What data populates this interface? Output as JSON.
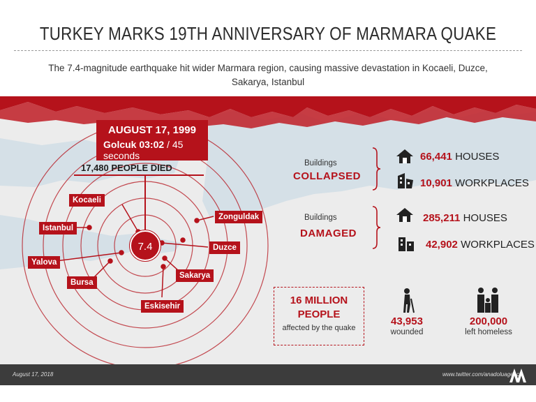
{
  "header": {
    "title": "TURKEY MARKS 19TH ANNIVERSARY OF MARMARA QUAKE",
    "subtitle": "The 7.4-magnitude earthquake hit wider Marmara region, causing massive devastation in Kocaeli, Duzce, Sakarya, Istanbul"
  },
  "event": {
    "date": "AUGUST 17, 1999",
    "place_time": "Golcuk  03:02",
    "duration": "/ 45 seconds",
    "died": "17,480 PEOPLE DIED",
    "magnitude": "7.4"
  },
  "cities": [
    "Kocaeli",
    "Istanbul",
    "Yalova",
    "Bursa",
    "Eskisehir",
    "Sakarya",
    "Duzce",
    "Zonguldak"
  ],
  "collapsed": {
    "label": "Buildings",
    "key": "COLLAPSED",
    "houses_num": "66,441",
    "houses_label": "HOUSES",
    "work_num": "10,901",
    "work_label": "WORKPLACES"
  },
  "damaged": {
    "label": "Buildings",
    "key": "DAMAGED",
    "houses_num": "285,211",
    "houses_label": "HOUSES",
    "work_num": "42,902",
    "work_label": "WORKPLACES"
  },
  "affected": {
    "line1": "16 MILLION",
    "line2": "PEOPLE",
    "caption": "affected by the quake"
  },
  "wounded": {
    "num": "43,953",
    "label": "wounded"
  },
  "homeless": {
    "num": "200,000",
    "label": "left homeless"
  },
  "footer": {
    "date": "August 17, 2018",
    "handle": "www.twitter.com/anadoluagency"
  },
  "colors": {
    "accent": "#b5121b",
    "sea": "#d8e3ea",
    "land": "#eeeeee",
    "footer": "#3c3c3c"
  }
}
